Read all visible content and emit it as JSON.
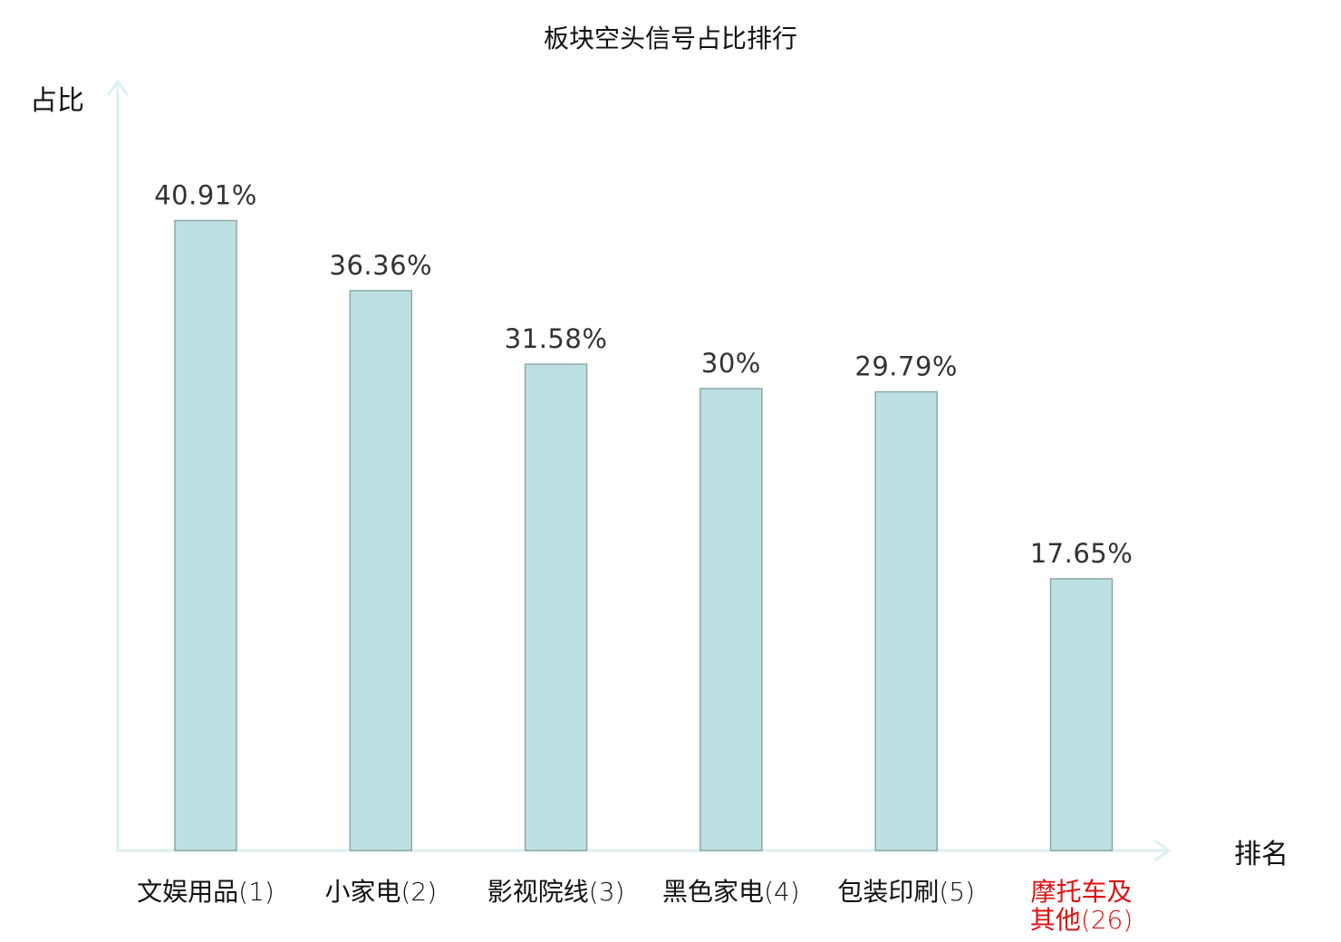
{
  "chart_data": {
    "type": "bar",
    "title": "板块空头信号占比排行",
    "ylabel": "占比",
    "xlabel": "排名",
    "ylim": [
      0,
      50
    ],
    "grid": false,
    "categories": [
      {
        "lines": [
          {
            "name": "文娱用品",
            "rank": "(1)"
          }
        ],
        "highlight": false
      },
      {
        "lines": [
          {
            "name": "小家电",
            "rank": "(2)"
          }
        ],
        "highlight": false
      },
      {
        "lines": [
          {
            "name": "影视院线",
            "rank": "(3)"
          }
        ],
        "highlight": false
      },
      {
        "lines": [
          {
            "name": "黑色家电",
            "rank": "(4)"
          }
        ],
        "highlight": false
      },
      {
        "lines": [
          {
            "name": "包装印刷",
            "rank": "(5)"
          }
        ],
        "highlight": false
      },
      {
        "lines": [
          {
            "name": "摩托车及",
            "rank": ""
          },
          {
            "name": "其他",
            "rank": "(26)"
          }
        ],
        "highlight": true
      }
    ],
    "values": [
      40.91,
      36.36,
      31.58,
      30,
      29.79,
      17.65
    ],
    "value_labels": [
      "40.91%",
      "36.36%",
      "31.58%",
      "30%",
      "29.79%",
      "17.65%"
    ]
  },
  "colors": {
    "bar_fill": "#bde0e3",
    "bar_stroke": "#8aa8ab",
    "axis": "#dcf0ef",
    "label_normal": "#111111",
    "label_highlight": "#e01010",
    "value_text": "#333333"
  }
}
